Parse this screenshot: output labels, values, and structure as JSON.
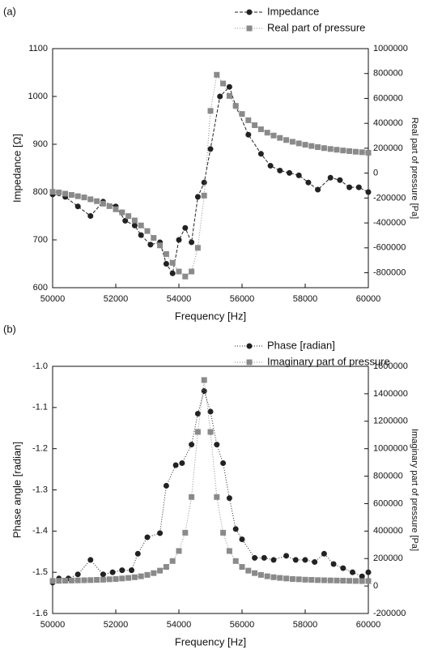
{
  "chart_data": [
    {
      "type": "line",
      "title": "(a)",
      "x_label": "Frequency [Hz]",
      "y_label": "Impedance [Ω]",
      "y2_label": "Real part of pressure [Pa]",
      "xlim": [
        50000,
        60000
      ],
      "xticks": [
        50000,
        52000,
        54000,
        56000,
        58000,
        60000
      ],
      "ylim": [
        600,
        1100
      ],
      "yticks": [
        600,
        700,
        800,
        900,
        1000,
        1100
      ],
      "y2lim": [
        -920000,
        1000000
      ],
      "y2ticks": [
        -800000,
        -600000,
        -400000,
        -200000,
        0,
        200000,
        400000,
        600000,
        800000,
        1000000
      ],
      "legend": "top-right",
      "series": [
        {
          "name": "Impedance",
          "color": "#222222",
          "marker": "circle",
          "line_style": "dashed",
          "x": [
            50000,
            50400,
            50800,
            51200,
            51600,
            52000,
            52300,
            52600,
            52800,
            53100,
            53400,
            53600,
            53800,
            54000,
            54200,
            54400,
            54600,
            54800,
            55000,
            55300,
            55600,
            55800,
            56200,
            56600,
            56900,
            57200,
            57500,
            57800,
            58100,
            58400,
            58800,
            59100,
            59400,
            59700,
            60000
          ],
          "values": [
            795,
            790,
            770,
            750,
            780,
            770,
            740,
            730,
            710,
            690,
            695,
            650,
            630,
            700,
            725,
            695,
            790,
            820,
            890,
            1000,
            1020,
            980,
            920,
            880,
            855,
            845,
            840,
            835,
            820,
            805,
            830,
            825,
            810,
            810,
            800
          ]
        },
        {
          "name": "Real part of pressure",
          "color": "#8a8a8a",
          "marker": "square",
          "line_style": "dotted",
          "axis": "y2",
          "x": [
            50000,
            50200,
            50400,
            50600,
            50800,
            51000,
            51200,
            51400,
            51600,
            51800,
            52000,
            52200,
            52400,
            52600,
            52800,
            53000,
            53200,
            53400,
            53600,
            53800,
            54000,
            54200,
            54400,
            54600,
            54800,
            55000,
            55200,
            55400,
            55600,
            55800,
            56000,
            56200,
            56400,
            56600,
            56800,
            57000,
            57200,
            57400,
            57600,
            57800,
            58000,
            58200,
            58400,
            58600,
            58800,
            59000,
            59200,
            59400,
            59600,
            59800,
            60000
          ],
          "values": [
            -150000,
            -155000,
            -165000,
            -175000,
            -185000,
            -195000,
            -210000,
            -225000,
            -245000,
            -265000,
            -290000,
            -315000,
            -345000,
            -380000,
            -420000,
            -465000,
            -520000,
            -580000,
            -650000,
            -720000,
            -790000,
            -830000,
            -790000,
            -600000,
            -180000,
            500000,
            790000,
            720000,
            620000,
            540000,
            475000,
            425000,
            385000,
            352000,
            325000,
            302000,
            283000,
            266000,
            252000,
            239000,
            228000,
            218000,
            209000,
            201000,
            194000,
            188000,
            182000,
            177000,
            172000,
            168000,
            164000
          ]
        }
      ]
    },
    {
      "type": "line",
      "title": "(b)",
      "x_label": "Frequency [Hz]",
      "y_label": "Phase angle [radian]",
      "y2_label": "Imaginary part of pressure [Pa]",
      "xlim": [
        50000,
        60000
      ],
      "xticks": [
        50000,
        52000,
        54000,
        56000,
        58000,
        60000
      ],
      "ylim": [
        -1.6,
        -1.0
      ],
      "yticks": [
        -1.6,
        -1.5,
        -1.4,
        -1.3,
        -1.2,
        -1.1,
        {
          "value": -1,
          "label": "-1.0"
        }
      ],
      "y2lim": [
        -200000,
        1600000
      ],
      "y2ticks": [
        -200000,
        0,
        200000,
        400000,
        600000,
        800000,
        1000000,
        1200000,
        1400000,
        1600000
      ],
      "legend": "top-right",
      "series": [
        {
          "name": "Phase [radian]",
          "color": "#222222",
          "marker": "circle",
          "line_style": "dotted",
          "x": [
            50000,
            50200,
            50500,
            50800,
            51200,
            51600,
            51900,
            52200,
            52500,
            52700,
            53000,
            53400,
            53600,
            53900,
            54100,
            54400,
            54600,
            54800,
            55000,
            55200,
            55400,
            55600,
            55800,
            56000,
            56400,
            56700,
            57000,
            57400,
            57700,
            58000,
            58300,
            58600,
            58900,
            59200,
            59500,
            59800,
            60000
          ],
          "values": [
            -1.525,
            -1.515,
            -1.515,
            -1.505,
            -1.47,
            -1.505,
            -1.5,
            -1.495,
            -1.495,
            -1.455,
            -1.415,
            -1.405,
            -1.29,
            -1.24,
            -1.235,
            -1.19,
            -1.115,
            -1.06,
            -1.11,
            -1.19,
            -1.235,
            -1.32,
            -1.395,
            -1.42,
            -1.465,
            -1.465,
            -1.47,
            -1.46,
            -1.47,
            -1.47,
            -1.475,
            -1.455,
            -1.48,
            -1.49,
            -1.5,
            -1.51,
            -1.5
          ]
        },
        {
          "name": "Imaginary part of pressure",
          "color": "#8a8a8a",
          "marker": "square",
          "line_style": "dotted",
          "axis": "y2",
          "x": [
            50000,
            50200,
            50400,
            50600,
            50800,
            51000,
            51200,
            51400,
            51600,
            51800,
            52000,
            52200,
            52400,
            52600,
            52800,
            53000,
            53200,
            53400,
            53600,
            53800,
            54000,
            54200,
            54400,
            54600,
            54800,
            55000,
            55200,
            55400,
            55600,
            55800,
            56000,
            56200,
            56400,
            56600,
            56800,
            57000,
            57200,
            57400,
            57600,
            57800,
            58000,
            58200,
            58400,
            58600,
            58800,
            59000,
            59200,
            59400,
            59600,
            59800,
            60000
          ],
          "values": [
            37000,
            38000,
            39000,
            40000,
            41000,
            42000,
            43000,
            45000,
            46000,
            49000,
            51000,
            55000,
            59000,
            64000,
            71000,
            81000,
            94000,
            112000,
            139000,
            182000,
            255000,
            388000,
            648000,
            1122000,
            1500000,
            1122000,
            648000,
            388000,
            255000,
            182000,
            139000,
            112000,
            94000,
            81000,
            71000,
            64000,
            59000,
            55000,
            51000,
            49000,
            46000,
            45000,
            43000,
            42000,
            41000,
            40000,
            39000,
            38000,
            37000,
            36000,
            36000
          ]
        }
      ]
    }
  ]
}
